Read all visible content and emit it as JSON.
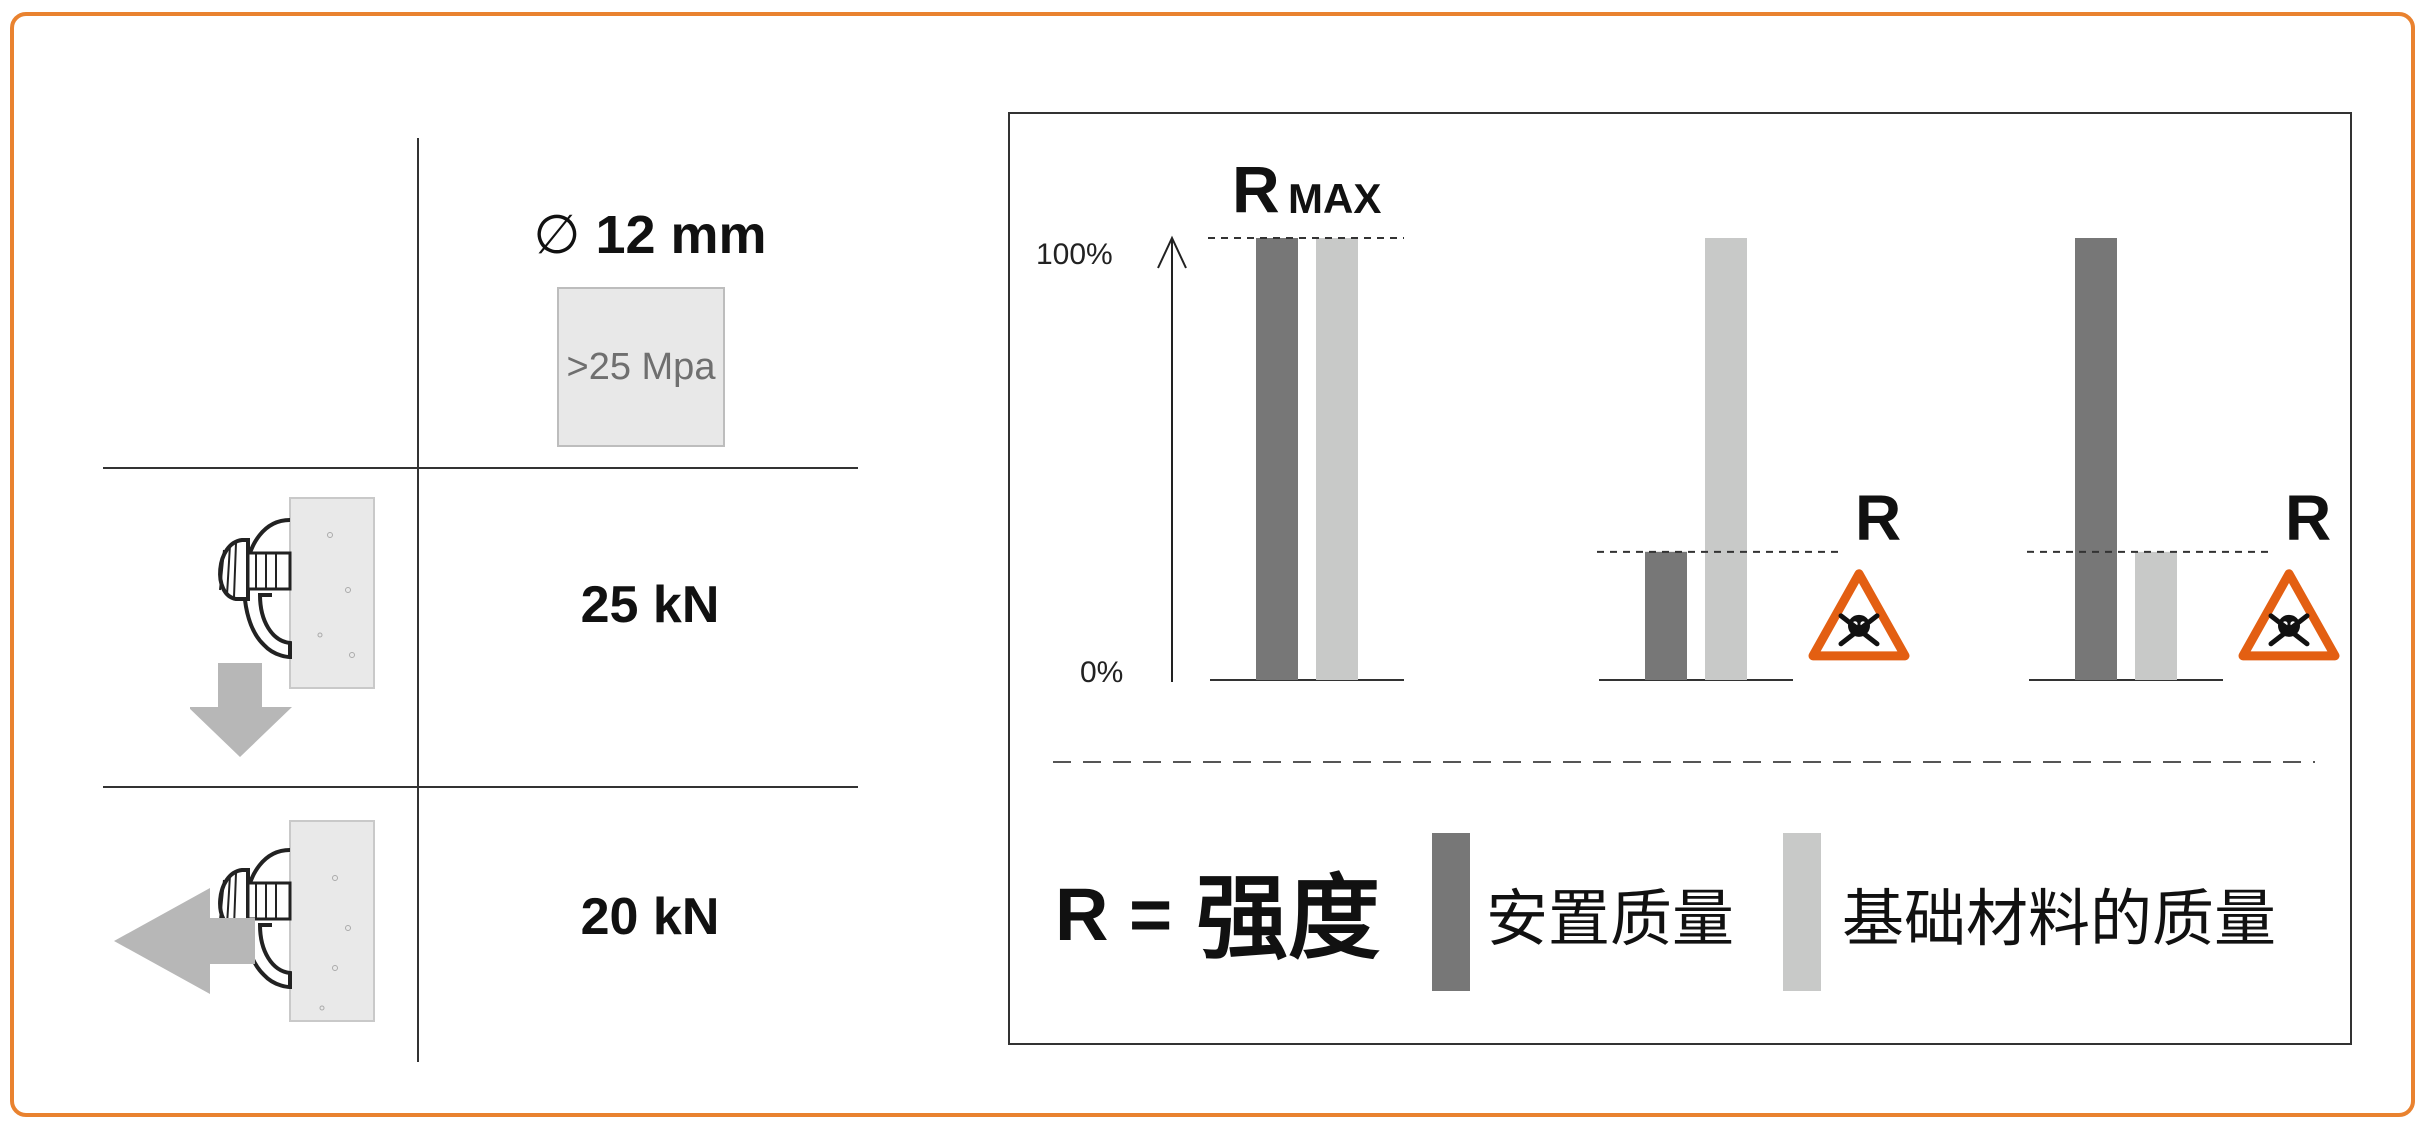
{
  "spec": {
    "diameter_symbol": "∅",
    "diameter_label": "12 mm",
    "concrete_strength": ">25 Mpa"
  },
  "loads": [
    {
      "direction": "down",
      "value": "25 kN"
    },
    {
      "direction": "left",
      "value": "20 kN"
    }
  ],
  "chart": {
    "axis_top_label": "100%",
    "axis_bottom_label": "0%",
    "rmax_big": "R",
    "rmax_small": "MAX",
    "r_label": "R",
    "legend": {
      "prefix": "R =",
      "term": "强度",
      "dark_label": "安置质量",
      "light_label": "基础材料的质量"
    },
    "colors": {
      "dark": "#777777",
      "light": "#c8c9c8",
      "warning": "#e35f12"
    },
    "warning_icon": "skull-crossbones-warning-icon"
  },
  "chart_data": {
    "type": "bar",
    "categories": [
      "",
      "",
      ""
    ],
    "series": [
      {
        "name": "安置质量",
        "values": [
          100,
          29,
          100
        ]
      },
      {
        "name": "基础材料的质量",
        "values": [
          100,
          100,
          29
        ]
      }
    ],
    "ylim": [
      0,
      100
    ],
    "yticks": [
      "0%",
      "100%"
    ],
    "reference_lines": [
      "R MAX",
      "R",
      "R"
    ],
    "grid": false
  },
  "frame_color": "#e9822f"
}
